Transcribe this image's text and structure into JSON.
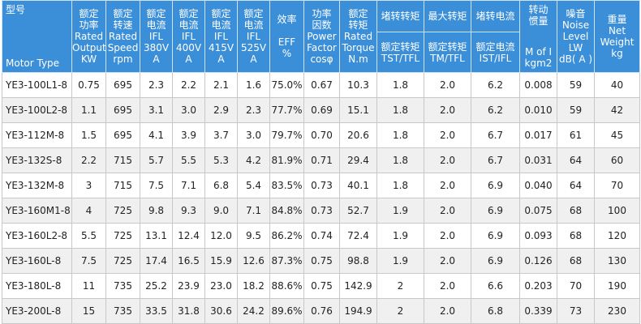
{
  "table": {
    "header": [
      {
        "top": [
          "型号"
        ],
        "bottom": [
          "Motor Type"
        ]
      },
      {
        "lines": [
          "额定",
          "功率",
          "Rated",
          "Output",
          "KW"
        ]
      },
      {
        "lines": [
          "额定",
          "转速",
          "Rated",
          "Speed",
          "rpm"
        ]
      },
      {
        "lines": [
          "额定",
          "电流",
          "IFL",
          "380V",
          "A"
        ]
      },
      {
        "lines": [
          "额定",
          "电流",
          "IFL",
          "400V",
          "A"
        ]
      },
      {
        "lines": [
          "额定",
          "电流",
          "IFL",
          "415V",
          "A"
        ]
      },
      {
        "lines": [
          "额定",
          "电流",
          "IFL",
          "525V",
          "A"
        ]
      },
      {
        "lines": [
          "效率",
          "",
          "EFF",
          "%"
        ]
      },
      {
        "lines": [
          "功率",
          "因数",
          "Power",
          "Factor",
          "cosφ"
        ]
      },
      {
        "lines": [
          "额定",
          "转矩",
          "Rated",
          "Torque",
          "N.m"
        ]
      },
      {
        "top": [
          "堵转转矩"
        ],
        "bottom": [
          "额定转矩",
          "TST/TFL"
        ]
      },
      {
        "top": [
          "最大转矩"
        ],
        "bottom": [
          "额定转矩",
          "TM/TFL"
        ]
      },
      {
        "top": [
          "堵转电流"
        ],
        "bottom": [
          "额定电流",
          "IST/IFL"
        ]
      },
      {
        "top": [
          "转动",
          "惯量"
        ],
        "bottom": [
          "M of I",
          "kgm2"
        ]
      },
      {
        "lines": [
          "噪音",
          "Noise",
          "Level",
          "LW",
          "dB( A )"
        ]
      },
      {
        "lines": [
          "重量",
          "Net",
          "Weight",
          "kg"
        ]
      }
    ],
    "rows": [
      [
        "YE3-100L1-8",
        "0.75",
        "695",
        "2.3",
        "2.2",
        "2.1",
        "1.6",
        "75.0%",
        "0.67",
        "10.3",
        "1.8",
        "2.0",
        "6.2",
        "0.008",
        "59",
        "40"
      ],
      [
        "YE3-100L2-8",
        "1.1",
        "695",
        "3.1",
        "3.0",
        "2.9",
        "2.3",
        "77.7%",
        "0.69",
        "15.1",
        "1.8",
        "2.0",
        "6.2",
        "0.010",
        "59",
        "42"
      ],
      [
        "YE3-112M-8",
        "1.5",
        "695",
        "4.1",
        "3.9",
        "3.7",
        "3.0",
        "79.7%",
        "0.70",
        "20.6",
        "1.8",
        "2.0",
        "6.7",
        "0.017",
        "61",
        "45"
      ],
      [
        "YE3-132S-8",
        "2.2",
        "715",
        "5.7",
        "5.5",
        "5.3",
        "4.2",
        "81.9%",
        "0.71",
        "29.4",
        "1.8",
        "2.0",
        "6.7",
        "0.031",
        "64",
        "60"
      ],
      [
        "YE3-132M-8",
        "3",
        "715",
        "7.5",
        "7.1",
        "6.8",
        "5.4",
        "83.5%",
        "0.73",
        "40.1",
        "1.8",
        "2.0",
        "6.9",
        "0.040",
        "64",
        "70"
      ],
      [
        "YE3-160M1-8",
        "4",
        "725",
        "9.8",
        "9.3",
        "9.0",
        "7.1",
        "84.8%",
        "0.73",
        "52.7",
        "1.9",
        "2.0",
        "6.9",
        "0.075",
        "68",
        "100"
      ],
      [
        "YE3-160L2-8",
        "5.5",
        "725",
        "13.1",
        "12.4",
        "12.0",
        "9.5",
        "86.2%",
        "0.74",
        "72.4",
        "1.9",
        "2.0",
        "6.9",
        "0.093",
        "68",
        "120"
      ],
      [
        "YE3-160L-8",
        "7.5",
        "725",
        "17.4",
        "16.5",
        "15.9",
        "12.6",
        "87.3%",
        "0.75",
        "98.8",
        "1.9",
        "2.0",
        "6.9",
        "0.126",
        "68",
        "130"
      ],
      [
        "YE3-180L-8",
        "11",
        "735",
        "25.2",
        "23.9",
        "23.0",
        "18.2",
        "88.6%",
        "0.75",
        "142.9",
        "2",
        "2.0",
        "6.6",
        "0.203",
        "70",
        "190"
      ],
      [
        "YE3-200L-8",
        "15",
        "735",
        "33.5",
        "31.8",
        "30.6",
        "24.2",
        "89.6%",
        "0.76",
        "194.9",
        "2",
        "2.0",
        "6.8",
        "0.339",
        "73",
        "230"
      ]
    ]
  }
}
